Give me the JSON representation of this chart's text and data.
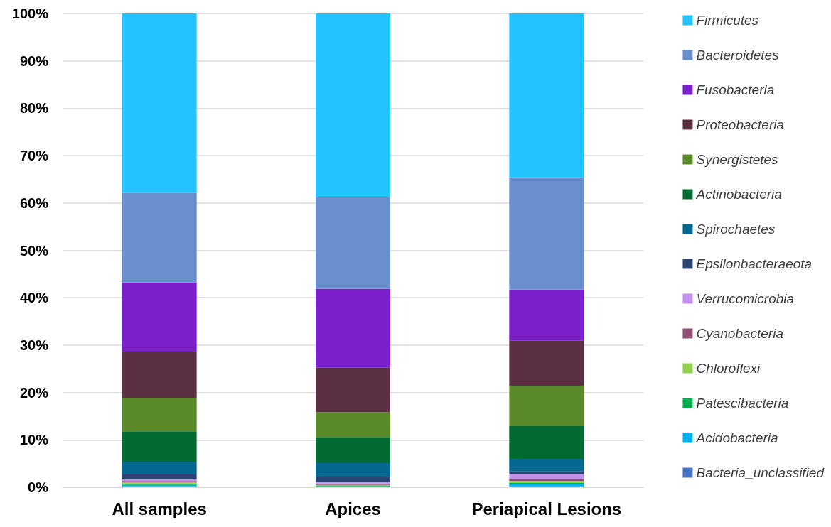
{
  "chart_data": {
    "type": "bar",
    "stacked": true,
    "categories": [
      "All samples",
      "Apices",
      "Periapical Lesions"
    ],
    "ylim": [
      0,
      100
    ],
    "yticks": [
      {
        "value": 0,
        "label": "0%"
      },
      {
        "value": 10,
        "label": "10%"
      },
      {
        "value": 20,
        "label": "20%"
      },
      {
        "value": 30,
        "label": "30%"
      },
      {
        "value": 40,
        "label": "40%"
      },
      {
        "value": 50,
        "label": "50%"
      },
      {
        "value": 60,
        "label": "60%"
      },
      {
        "value": 70,
        "label": "70%"
      },
      {
        "value": 80,
        "label": "80%"
      },
      {
        "value": 90,
        "label": "90%"
      },
      {
        "value": 100,
        "label": "100%"
      }
    ],
    "grid": "y",
    "legend": "right",
    "series": [
      {
        "name": "Bacteria_unclassified",
        "color": "#4472c4",
        "values": [
          0.2,
          0.1,
          0.2
        ]
      },
      {
        "name": "Acidobacteria",
        "color": "#00b0f0",
        "values": [
          0.3,
          0.1,
          0.4
        ]
      },
      {
        "name": "Patescibacteria",
        "color": "#00b050",
        "values": [
          0.3,
          0.1,
          0.3
        ]
      },
      {
        "name": "Chloroflexi",
        "color": "#8fd14f",
        "values": [
          0.2,
          0.2,
          0.4
        ]
      },
      {
        "name": "Cyanobacteria",
        "color": "#904e70",
        "values": [
          0.3,
          0.3,
          0.4
        ]
      },
      {
        "name": "Verrucomicrobia",
        "color": "#c490ee",
        "values": [
          0.4,
          0.3,
          1.0
        ]
      },
      {
        "name": "Epsilonbacteraeota",
        "color": "#2b4474",
        "values": [
          1.0,
          1.1,
          0.7
        ]
      },
      {
        "name": "Spirochaetes",
        "color": "#046890",
        "values": [
          2.7,
          2.9,
          2.6
        ]
      },
      {
        "name": "Actinobacteria",
        "color": "#036b31",
        "values": [
          6.4,
          5.5,
          6.9
        ]
      },
      {
        "name": "Synergistetes",
        "color": "#5b8a28",
        "values": [
          7.1,
          5.2,
          8.5
        ]
      },
      {
        "name": "Proteobacteria",
        "color": "#5a3042",
        "values": [
          9.7,
          9.5,
          9.6
        ]
      },
      {
        "name": "Fusobacteria",
        "color": "#7b1fcc",
        "values": [
          14.6,
          16.6,
          10.7
        ]
      },
      {
        "name": "Bacteroidetes",
        "color": "#6a8fcf",
        "values": [
          18.9,
          19.4,
          23.7
        ]
      },
      {
        "name": "Firmicutes",
        "color": "#22c3ff",
        "values": [
          37.9,
          38.7,
          34.6
        ]
      }
    ]
  }
}
